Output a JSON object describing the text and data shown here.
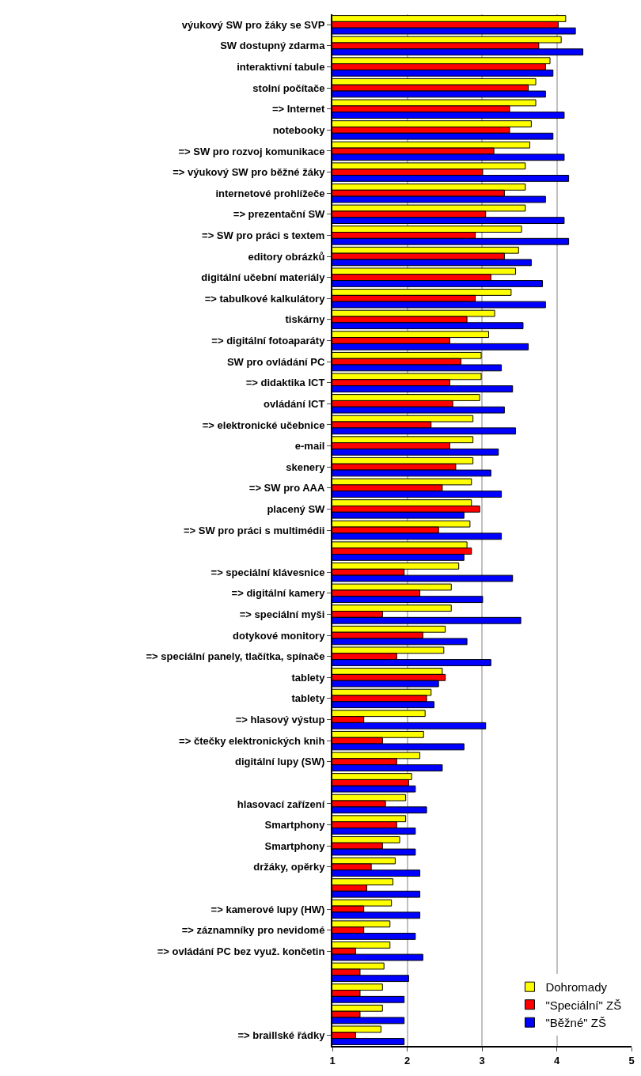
{
  "chart_data": {
    "type": "bar",
    "orientation": "horizontal",
    "categories": [
      "výukový SW pro žáky se SVP",
      "SW dostupný zdarma",
      "interaktivní tabule",
      "stolní počítače",
      "=> Internet",
      "notebooky",
      "=> SW pro rozvoj komunikace",
      "=> výukový SW pro běžné žáky",
      "internetové prohlížeče",
      "=> prezentační SW",
      "=> SW pro práci s textem",
      "editory obrázků",
      "digitální učební materiály",
      "=> tabulkové kalkulátory",
      "tiskárny",
      "=> digitální fotoaparáty",
      "SW pro ovládání PC",
      "=> didaktika ICT",
      "ovládání ICT",
      "=> elektronické učebnice",
      "e-mail",
      "skenery",
      "=> SW pro AAA",
      "placený SW",
      "=> SW pro práci s multimédii",
      null,
      "=> speciální klávesnice",
      "=> digitální kamery",
      "=> speciální myši",
      "dotykové monitory",
      "=> speciální panely, tlačítka, spínače",
      "tablety",
      "tablety",
      "=> hlasový výstup",
      "=> čtečky elektronických knih",
      "digitální lupy (SW)",
      null,
      "hlasovací zařízení",
      "Smartphony",
      "Smartphony",
      "držáky, opěrky",
      null,
      "=> kamerové lupy (HW)",
      "=> záznamníky pro nevidomé",
      "=> ovládání PC bez využ. končetin",
      null,
      null,
      null,
      "=> braillské řádky"
    ],
    "series": [
      {
        "name": "Dohromady",
        "color": "#ffff00",
        "values": [
          4.12,
          4.06,
          3.91,
          3.72,
          3.72,
          3.66,
          3.64,
          3.58,
          3.58,
          3.58,
          3.53,
          3.49,
          3.45,
          3.39,
          3.17,
          3.09,
          2.99,
          2.99,
          2.97,
          2.88,
          2.88,
          2.88,
          2.86,
          2.86,
          2.84,
          2.8,
          2.69,
          2.59,
          2.59,
          2.51,
          2.49,
          2.47,
          2.32,
          2.24,
          2.22,
          2.17,
          2.06,
          1.98,
          1.98,
          1.9,
          1.84,
          1.81,
          1.79,
          1.77,
          1.77,
          1.69,
          1.67,
          1.67,
          1.65
        ]
      },
      {
        "name": "\"Speciální\" ZŠ",
        "color": "#ff0000",
        "values": [
          4.02,
          3.76,
          3.85,
          3.62,
          3.37,
          3.37,
          3.16,
          3.01,
          3.3,
          3.05,
          2.91,
          3.3,
          3.12,
          2.91,
          2.8,
          2.57,
          2.72,
          2.57,
          2.61,
          2.32,
          2.57,
          2.65,
          2.47,
          2.97,
          2.42,
          2.86,
          1.96,
          2.17,
          1.67,
          2.21,
          1.86,
          2.51,
          2.26,
          1.42,
          1.67,
          1.86,
          2.02,
          1.71,
          1.86,
          1.67,
          1.52,
          1.46,
          1.42,
          1.42,
          1.31,
          1.37,
          1.37,
          1.37,
          1.31
        ]
      },
      {
        "name": "\"Běžné\" ZŠ",
        "color": "#0000ff",
        "values": [
          4.25,
          4.35,
          3.95,
          3.85,
          4.1,
          3.95,
          4.1,
          4.16,
          3.85,
          4.1,
          4.16,
          3.66,
          3.81,
          3.85,
          3.55,
          3.62,
          3.26,
          3.41,
          3.3,
          3.45,
          3.22,
          3.12,
          3.26,
          2.76,
          3.26,
          2.76,
          3.41,
          3.01,
          3.52,
          2.8,
          3.12,
          2.42,
          2.36,
          3.05,
          2.76,
          2.47,
          2.11,
          2.26,
          2.11,
          2.11,
          2.17,
          2.17,
          2.17,
          2.11,
          2.21,
          2.02,
          1.96,
          1.96,
          1.96
        ]
      }
    ],
    "xlim": [
      1,
      5
    ],
    "xticks": [
      1,
      2,
      3,
      4,
      5
    ],
    "grid": "x",
    "legend": "bottom right"
  }
}
